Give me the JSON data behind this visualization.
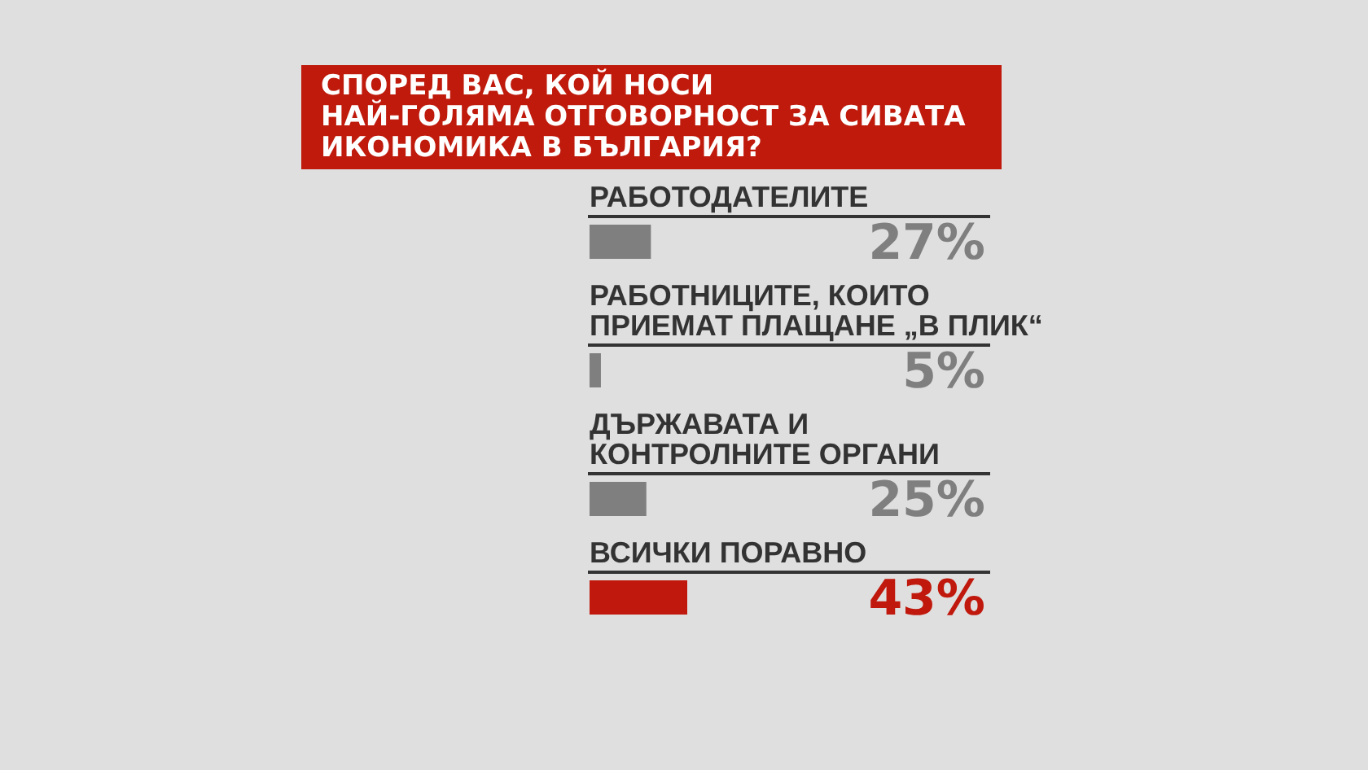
{
  "chart_data": {
    "type": "bar",
    "orientation": "horizontal",
    "title": "СПОРЕД ВАС, КОЙ НОСИ\nНАЙ-ГОЛЯМА ОТГОВОРНОСТ ЗА СИВАТА\nИКОНОМИКА В БЪЛГАРИЯ?",
    "categories": [
      "РАБОТОДАТЕЛИТЕ",
      "РАБОТНИЦИТЕ, КОИТО\nПРИЕМАТ ПЛАЩАНЕ „В ПЛИК“",
      "ДЪРЖАВАТА И\nКОНТРОЛНИТЕ ОРГАНИ",
      "ВСИЧКИ ПОРАВНО"
    ],
    "values": [
      27,
      5,
      25,
      43
    ],
    "colors": [
      "#7f7f7f",
      "#7f7f7f",
      "#7f7f7f",
      "#c0180c"
    ],
    "value_labels": [
      "27%",
      "5%",
      "25%",
      "43%"
    ],
    "tick_labels": false
  }
}
